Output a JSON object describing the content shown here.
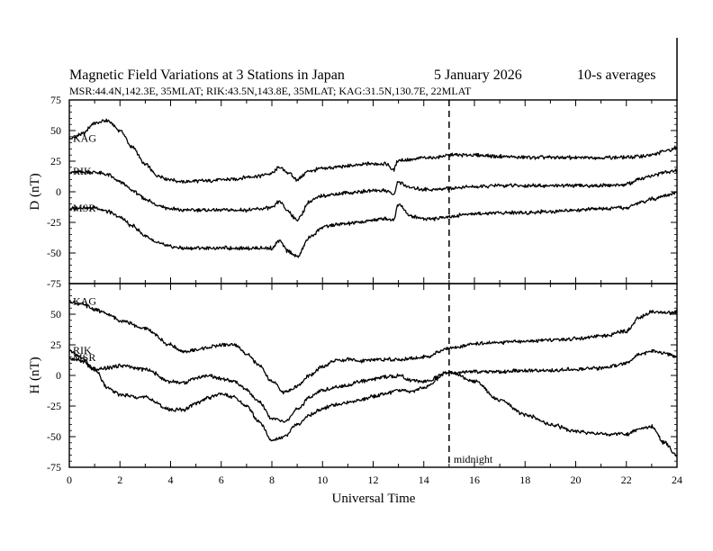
{
  "header": {
    "title_main": "Magnetic Field Variations at 3 Stations in Japan",
    "title_date": "5   January  2026",
    "title_avg": "10-s averages",
    "subtitle": "MSR:44.4N,142.3E, 35MLAT;  RIK:43.5N,143.8E, 35MLAT;  KAG:31.5N,130.7E, 22MLAT"
  },
  "chart_data": {
    "type": "line",
    "xlabel": "Universal Time",
    "xlim": [
      0,
      24
    ],
    "xticks": [
      "0",
      "2",
      "4",
      "6",
      "8",
      "10",
      "12",
      "14",
      "16",
      "18",
      "20",
      "22",
      "24"
    ],
    "midnight": {
      "x": 15,
      "label": "midnight"
    },
    "colors": {
      "line": "#000000",
      "background": "#ffffff"
    },
    "panels": [
      {
        "name": "D",
        "ylabel": "D (nT)",
        "ylim": [
          -75,
          75
        ],
        "yticks": [
          "75",
          "50",
          "25",
          "0",
          "-25",
          "-50",
          "-75"
        ],
        "series": [
          {
            "name": "KAG",
            "x": [
              0,
              0.5,
              1,
              1.5,
              2,
              2.5,
              3,
              3.5,
              4,
              4.5,
              5,
              5.5,
              6,
              6.5,
              7,
              7.5,
              8,
              8.3,
              8.6,
              9,
              9.5,
              10,
              10.5,
              11,
              11.5,
              12,
              12.5,
              12.8,
              13,
              13.5,
              14,
              14.5,
              15,
              16,
              17,
              18,
              19,
              20,
              21,
              22,
              22.5,
              23,
              23.5,
              24
            ],
            "values": [
              43,
              47,
              56,
              58,
              50,
              36,
              22,
              13,
              10,
              8,
              9,
              9,
              10,
              10,
              12,
              13,
              15,
              20,
              16,
              10,
              17,
              19,
              20,
              21,
              22,
              23,
              23,
              18,
              26,
              26,
              28,
              28,
              30,
              30,
              29,
              28,
              28,
              28,
              28,
              28,
              29,
              30,
              33,
              36
            ]
          },
          {
            "name": "RIK",
            "x": [
              0,
              0.5,
              1,
              1.5,
              2,
              2.5,
              3,
              3.5,
              4,
              4.5,
              5,
              5.5,
              6,
              6.5,
              7,
              7.5,
              8,
              8.3,
              8.6,
              9,
              9.5,
              10,
              10.5,
              11,
              11.5,
              12,
              12.5,
              12.8,
              13,
              13.5,
              14,
              14.5,
              15,
              16,
              17,
              18,
              19,
              20,
              21,
              22,
              22.5,
              23,
              23.5,
              24
            ],
            "values": [
              16,
              16,
              16,
              14,
              8,
              1,
              -6,
              -11,
              -14,
              -15,
              -15,
              -15,
              -15,
              -15,
              -15,
              -14,
              -13,
              -8,
              -15,
              -23,
              -8,
              -3,
              -2,
              -1,
              0,
              1,
              1,
              -2,
              8,
              3,
              2,
              2,
              3,
              4,
              5,
              5,
              5,
              5,
              5,
              6,
              10,
              13,
              16,
              17
            ]
          },
          {
            "name": "MSR",
            "x": [
              0,
              0.5,
              1,
              1.5,
              2,
              2.5,
              3,
              3.5,
              4,
              4.5,
              5,
              5.5,
              6,
              6.5,
              7,
              7.5,
              8,
              8.3,
              8.6,
              9,
              9.5,
              10,
              10.5,
              11,
              11.5,
              12,
              12.5,
              12.8,
              13,
              13.5,
              14,
              14.5,
              15,
              16,
              17,
              18,
              19,
              20,
              21,
              22,
              22.5,
              23,
              23.5,
              24
            ],
            "values": [
              -14,
              -13,
              -13,
              -16,
              -21,
              -28,
              -36,
              -42,
              -45,
              -46,
              -46,
              -46,
              -46,
              -46,
              -46,
              -46,
              -46,
              -40,
              -48,
              -53,
              -37,
              -29,
              -27,
              -26,
              -25,
              -23,
              -22,
              -23,
              -10,
              -20,
              -22,
              -22,
              -20,
              -18,
              -17,
              -17,
              -16,
              -15,
              -14,
              -13,
              -9,
              -6,
              -3,
              -1
            ]
          }
        ]
      },
      {
        "name": "H",
        "ylabel": "H (nT)",
        "ylim": [
          -75,
          75
        ],
        "yticks": [
          "75",
          "50",
          "25",
          "0",
          "-25",
          "-50",
          "-75"
        ],
        "series": [
          {
            "name": "KAG",
            "x": [
              0,
              0.5,
              1,
              1.5,
              2,
              3,
              4,
              4.5,
              5,
              5.5,
              6,
              6.5,
              7,
              7.5,
              8,
              8.5,
              9,
              9.5,
              10,
              10.5,
              11,
              11.5,
              12,
              12.5,
              13,
              13.5,
              14,
              15,
              16,
              17,
              18,
              19,
              20,
              21,
              22,
              22.5,
              23,
              23.5,
              24
            ],
            "values": [
              60,
              58,
              54,
              50,
              45,
              38,
              25,
              19,
              21,
              23,
              25,
              25,
              18,
              8,
              -5,
              -14,
              -9,
              0,
              7,
              12,
              13,
              12,
              13,
              13,
              13,
              14,
              15,
              22,
              26,
              27,
              28,
              29,
              30,
              32,
              36,
              47,
              52,
              51,
              52
            ]
          },
          {
            "name": "MSR",
            "x": [
              0,
              0.5,
              1,
              1.5,
              2,
              3,
              4,
              4.5,
              5,
              5.5,
              6,
              6.5,
              7,
              7.5,
              8,
              8.5,
              9,
              9.5,
              10,
              10.5,
              11,
              11.5,
              12,
              12.5,
              13,
              13.5,
              14,
              15,
              16,
              17,
              18,
              19,
              20,
              21,
              22,
              22.5,
              23,
              23.5,
              24
            ],
            "values": [
              14,
              12,
              4,
              6,
              8,
              5,
              -5,
              -6,
              -2,
              0,
              -3,
              -5,
              -12,
              -22,
              -35,
              -38,
              -28,
              -18,
              -12,
              -10,
              -8,
              -5,
              -3,
              -1,
              0,
              -4,
              -5,
              2,
              3,
              3,
              4,
              4,
              5,
              6,
              10,
              17,
              20,
              18,
              15
            ]
          },
          {
            "name": "RIK",
            "x": [
              0,
              0.5,
              1,
              1.5,
              2,
              3,
              4,
              4.5,
              5,
              5.5,
              6,
              6.5,
              7,
              7.5,
              8,
              8.5,
              9,
              9.5,
              10,
              10.5,
              11,
              11.5,
              12,
              12.5,
              13,
              13.5,
              14,
              15,
              16,
              17,
              18,
              19,
              20,
              21,
              22,
              22.5,
              23,
              23.5,
              24
            ],
            "values": [
              20,
              14,
              5,
              -10,
              -16,
              -18,
              -28,
              -28,
              -23,
              -18,
              -15,
              -18,
              -25,
              -38,
              -53,
              -50,
              -40,
              -32,
              -27,
              -24,
              -22,
              -20,
              -17,
              -15,
              -12,
              -13,
              -10,
              3,
              -5,
              -20,
              -32,
              -40,
              -46,
              -48,
              -48,
              -44,
              -42,
              -55,
              -66
            ]
          }
        ]
      }
    ]
  }
}
